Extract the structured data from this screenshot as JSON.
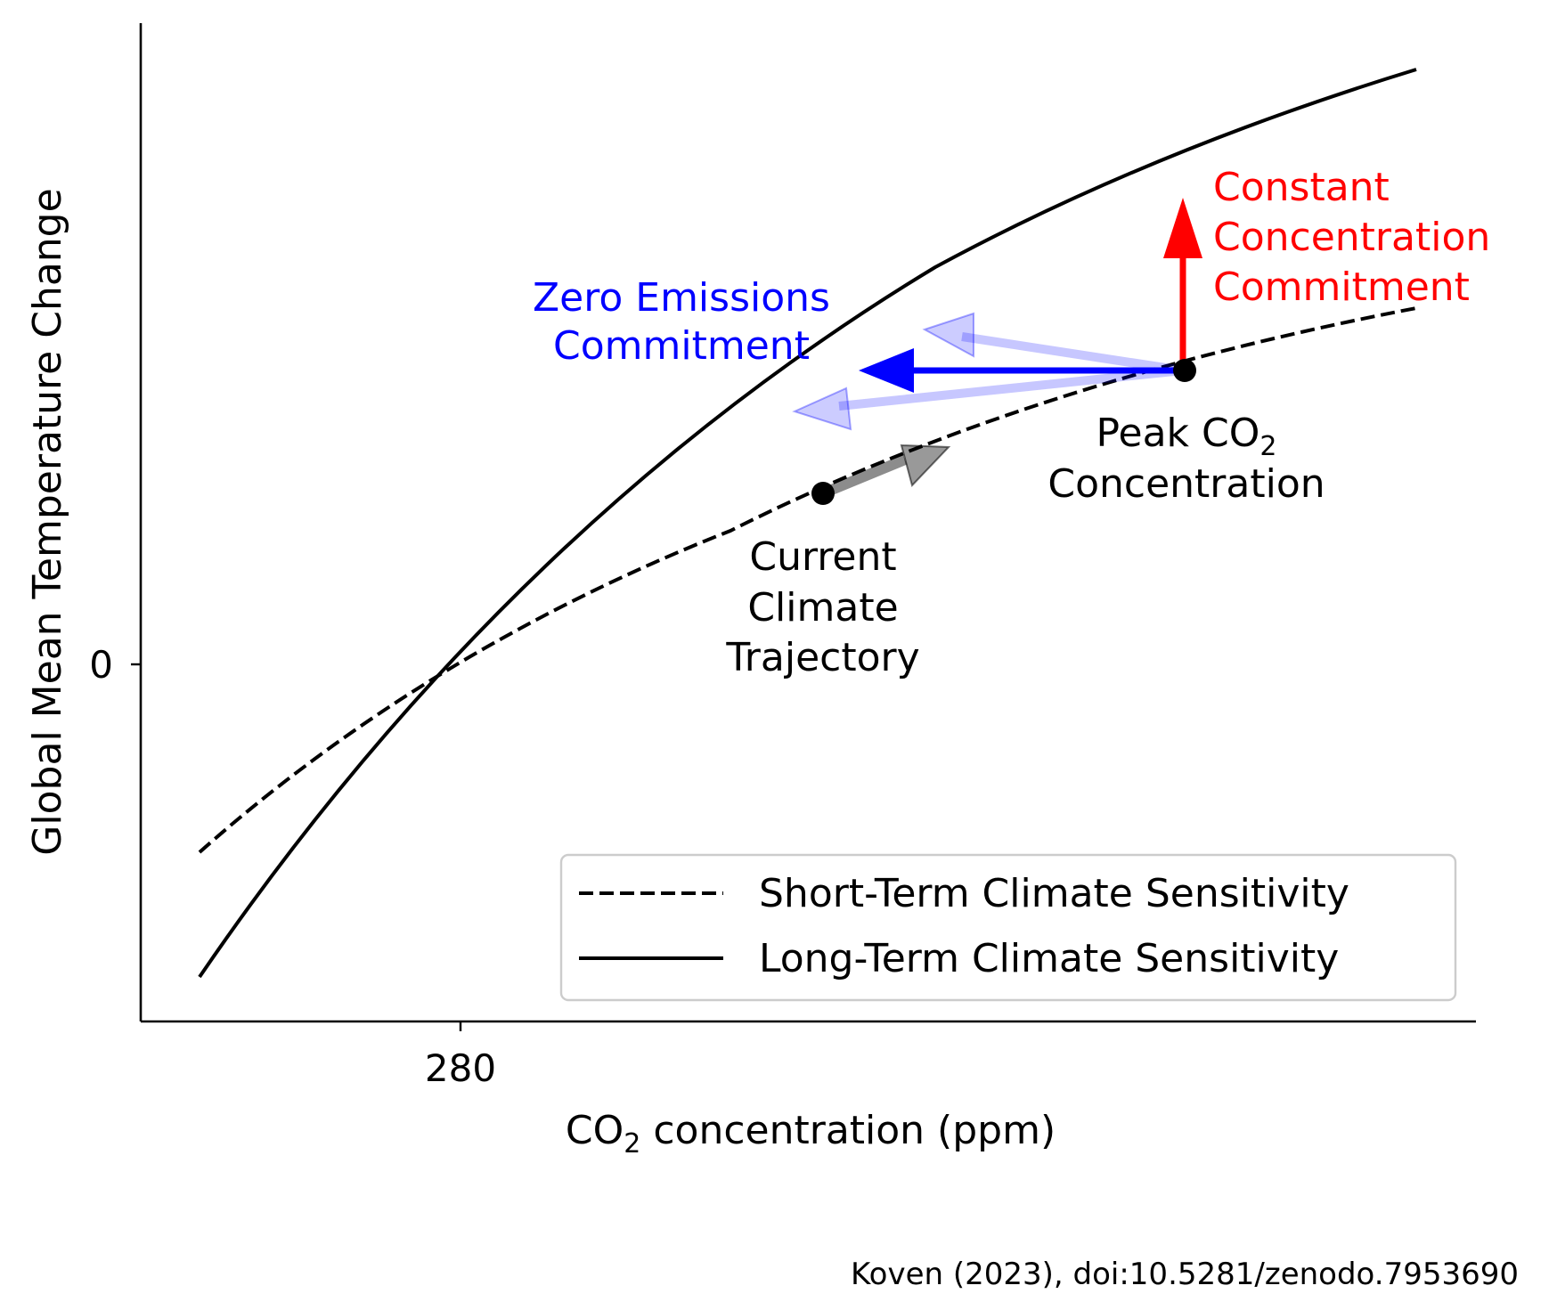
{
  "chart_data": {
    "type": "line",
    "title": "",
    "xlabel": "CO2 concentration (ppm)",
    "ylabel": "Global Mean Temperature Change",
    "x_ticks": [
      "280"
    ],
    "y_ticks": [
      "0"
    ],
    "grid": false,
    "legend_position": "lower-right",
    "series": [
      {
        "name": "Short-Term Climate Sensitivity",
        "style": "dashed",
        "color": "#000000"
      },
      {
        "name": "Long-Term Climate Sensitivity",
        "style": "solid",
        "color": "#000000"
      }
    ],
    "points": [
      {
        "label": "Current Climate Trajectory"
      },
      {
        "label": "Peak CO2 Concentration"
      }
    ],
    "annotations": {
      "zero_emissions": {
        "text": [
          "Zero Emissions",
          "Commitment"
        ],
        "color": "#0000ff"
      },
      "constant_concentration": {
        "text": [
          "Constant",
          "Concentration",
          "Commitment"
        ],
        "color": "#ff0000"
      },
      "current": {
        "text": [
          "Current",
          "Climate",
          "Trajectory"
        ]
      },
      "peak": {
        "line1_prefix": "Peak CO",
        "line1_sub": "2",
        "line2": "Concentration"
      }
    },
    "xlabel_parts": {
      "prefix": "CO",
      "sub": "2",
      "suffix": " concentration (ppm)"
    },
    "credit": "Koven (2023), doi:10.5281/zenodo.7953690"
  }
}
